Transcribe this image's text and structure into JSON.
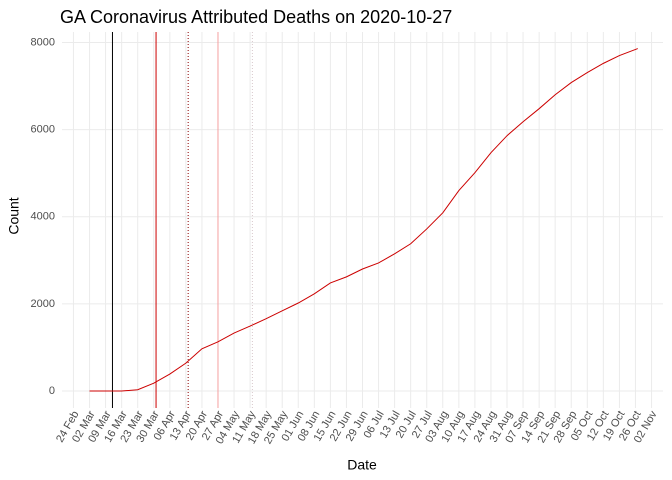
{
  "chart_data": {
    "type": "line",
    "title": "GA Coronavirus Attributed Deaths on 2020-10-27",
    "x_label": "Date",
    "y_label": "Count",
    "x": [
      "02 Mar",
      "09 Mar",
      "16 Mar",
      "23 Mar",
      "30 Mar",
      "06 Apr",
      "13 Apr",
      "20 Apr",
      "27 Apr",
      "04 May",
      "11 May",
      "18 May",
      "25 May",
      "01 Jun",
      "08 Jun",
      "15 Jun",
      "22 Jun",
      "29 Jun",
      "06 Jul",
      "13 Jul",
      "20 Jul",
      "27 Jul",
      "03 Aug",
      "10 Aug",
      "17 Aug",
      "24 Aug",
      "31 Aug",
      "07 Sep",
      "14 Sep",
      "21 Sep",
      "28 Sep",
      "05 Oct",
      "12 Oct",
      "19 Oct",
      "27 Oct"
    ],
    "series": [
      {
        "color": "#cc0000",
        "values": [
          0,
          0,
          0,
          30,
          180,
          390,
          640,
          970,
          1130,
          1330,
          1490,
          1660,
          1840,
          2020,
          2230,
          2480,
          2620,
          2800,
          2940,
          3150,
          3380,
          3720,
          4090,
          4600,
          5010,
          5470,
          5860,
          6180,
          6480,
          6800,
          7080,
          7310,
          7520,
          7700,
          7860
        ]
      }
    ],
    "vlines": [
      {
        "x": "12 Mar",
        "color": "#000000",
        "dash": "solid"
      },
      {
        "x": "31 Mar",
        "color": "#cc0000",
        "dash": "solid"
      },
      {
        "x": "14 Apr",
        "color": "#8b0000",
        "dash": "dotted"
      },
      {
        "x": "27 Apr",
        "color": "#f4a0a0",
        "dash": "solid"
      },
      {
        "x": "12 May",
        "color": "#d8c8cc",
        "dash": "dotted"
      }
    ],
    "xlim": [
      "19 Feb",
      "07 Nov"
    ],
    "xticks": [
      "24 Feb",
      "02 Mar",
      "09 Mar",
      "16 Mar",
      "23 Mar",
      "30 Mar",
      "06 Apr",
      "13 Apr",
      "20 Apr",
      "27 Apr",
      "04 May",
      "11 May",
      "18 May",
      "25 May",
      "01 Jun",
      "08 Jun",
      "15 Jun",
      "22 Jun",
      "29 Jun",
      "06 Jul",
      "13 Jul",
      "20 Jul",
      "27 Jul",
      "03 Aug",
      "10 Aug",
      "17 Aug",
      "24 Aug",
      "31 Aug",
      "07 Sep",
      "14 Sep",
      "21 Sep",
      "28 Sep",
      "05 Oct",
      "12 Oct",
      "19 Oct",
      "26 Oct",
      "02 Nov"
    ],
    "ylim": [
      -390,
      8240
    ],
    "yticks": [
      0,
      2000,
      4000,
      6000,
      8000
    ],
    "grid": true
  }
}
